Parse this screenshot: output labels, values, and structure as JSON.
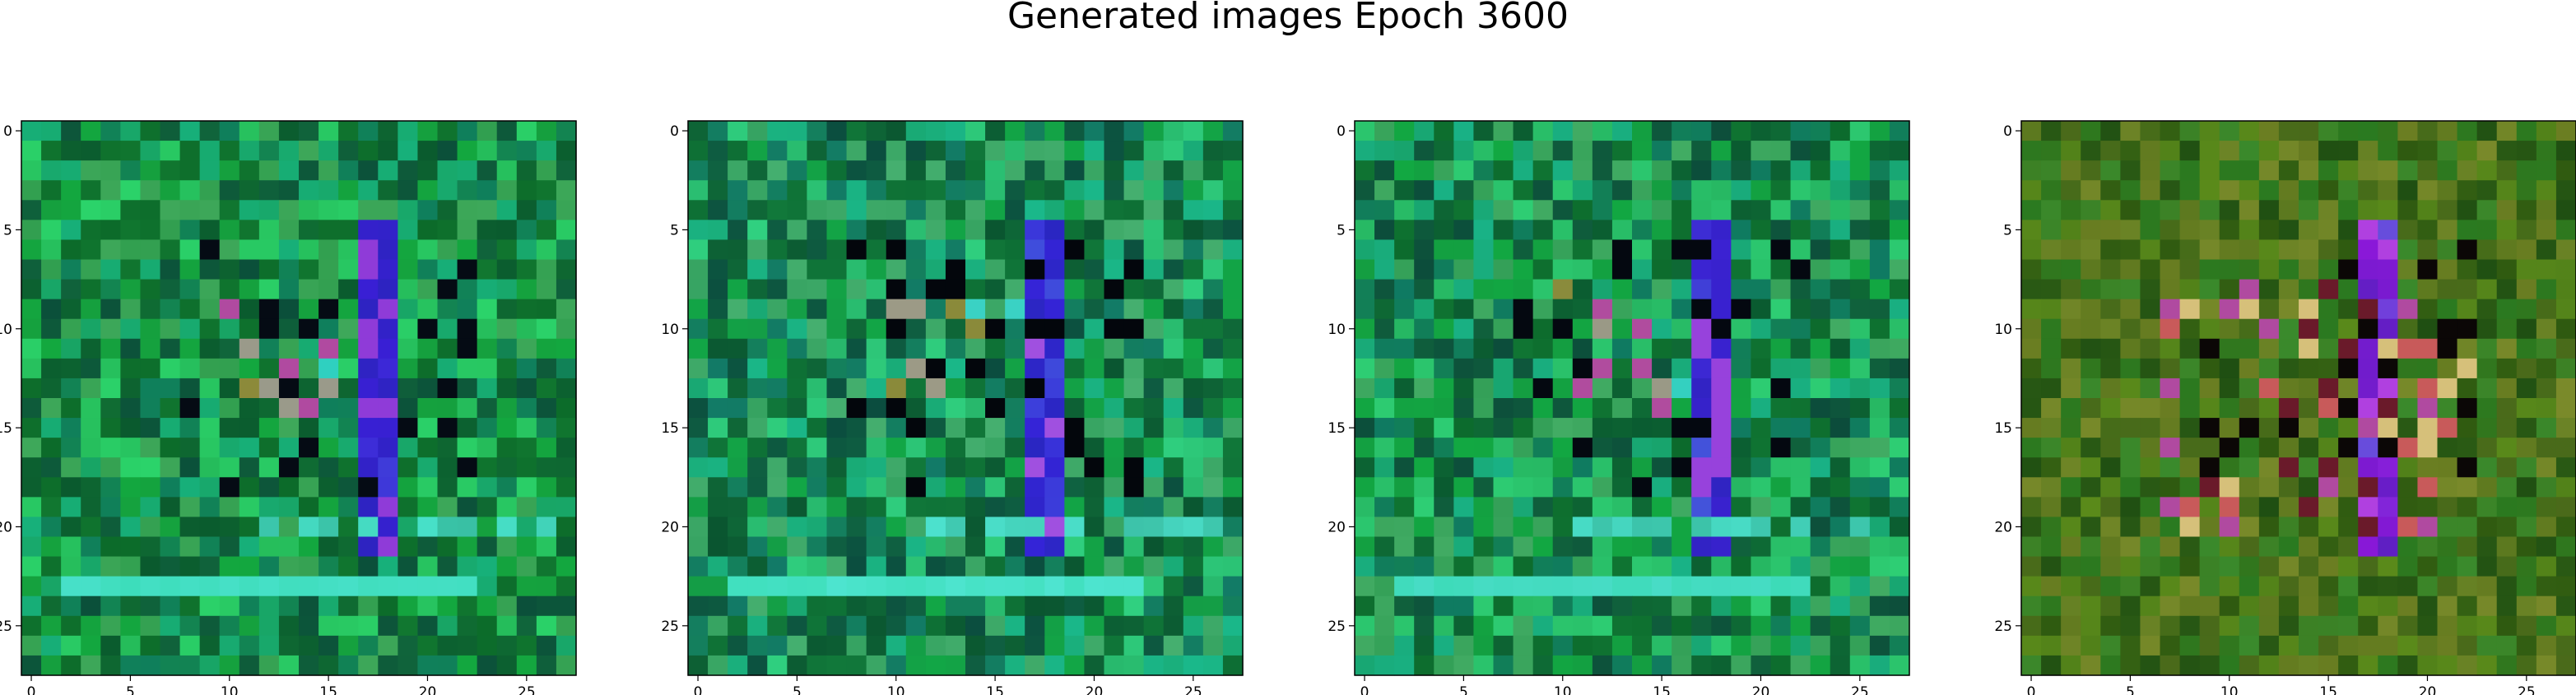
{
  "figure": {
    "title": "Generated images Epoch 3600"
  },
  "chart_data": {
    "type": "heatmap",
    "title": "Generated images Epoch 3600",
    "grid": false,
    "image_size": 28,
    "ticks": {
      "x": [
        0,
        5,
        10,
        15,
        20,
        25
      ],
      "y": [
        0,
        5,
        10,
        15,
        20,
        25
      ],
      "x_labels": [
        "0",
        "5",
        "10",
        "15",
        "20",
        "25"
      ],
      "y_labels": [
        "0",
        "5",
        "10",
        "15",
        "20",
        "25"
      ]
    },
    "xlim": [
      -0.5,
      27.5
    ],
    "ylim": [
      27.5,
      -0.5
    ],
    "panels": [
      {
        "id": "image-1",
        "base_color": "#1a8f3c",
        "noise_colors": [
          "#0c6b2a",
          "#13a83f",
          "#0f7f5c",
          "#2bd36a",
          "#0a5a2e",
          "#17b07a",
          "#0b4f3a",
          "#3ea85a"
        ],
        "stroke_color": "#3a1fd6",
        "stroke_accent": "#8f3bd8",
        "band_color": "#47e0c8",
        "dark_color": "#050b14",
        "accent_colors": [
          "#9a9a8a",
          "#2fd0c0",
          "#b04aa0",
          "#8c8a3a"
        ]
      },
      {
        "id": "image-2",
        "base_color": "#188b46",
        "noise_colors": [
          "#0d6e34",
          "#12a646",
          "#127a67",
          "#30d080",
          "#0a5530",
          "#1ab88a",
          "#0b4d3f",
          "#46b070"
        ],
        "stroke_color": "#3524d8",
        "stroke_accent": "#a050e0",
        "band_color": "#4ee4d0",
        "dark_color": "#03060c",
        "accent_colors": [
          "#9c9a86",
          "#3ad2c4",
          "#b24f9c",
          "#8a8a3a"
        ]
      },
      {
        "id": "image-3",
        "base_color": "#17893f",
        "noise_colors": [
          "#0c6a2c",
          "#12a842",
          "#0f7a62",
          "#2ece74",
          "#0a5a30",
          "#19b286",
          "#0c4c3b",
          "#42ac64"
        ],
        "stroke_color": "#3b21d2",
        "stroke_accent": "#9742dc",
        "band_color": "#48dcc6",
        "dark_color": "#040810",
        "accent_colors": [
          "#9a9986",
          "#34d0c0",
          "#b04c9e",
          "#8a8b3c"
        ]
      },
      {
        "id": "image-4",
        "base_color": "#3f6f18",
        "noise_colors": [
          "#2f5a10",
          "#5a8a1a",
          "#6b7e22",
          "#2a7a20",
          "#1f4f12",
          "#7a8a2a",
          "#4a6a1a",
          "#3a8a2c"
        ],
        "stroke_color": "#8a18d8",
        "stroke_accent": "#b040e0",
        "band_color": "#3f6f18",
        "dark_color": "#0b0706",
        "accent_colors": [
          "#c85a5a",
          "#d6c07a",
          "#b04aa0",
          "#6a1a2a"
        ]
      }
    ]
  }
}
